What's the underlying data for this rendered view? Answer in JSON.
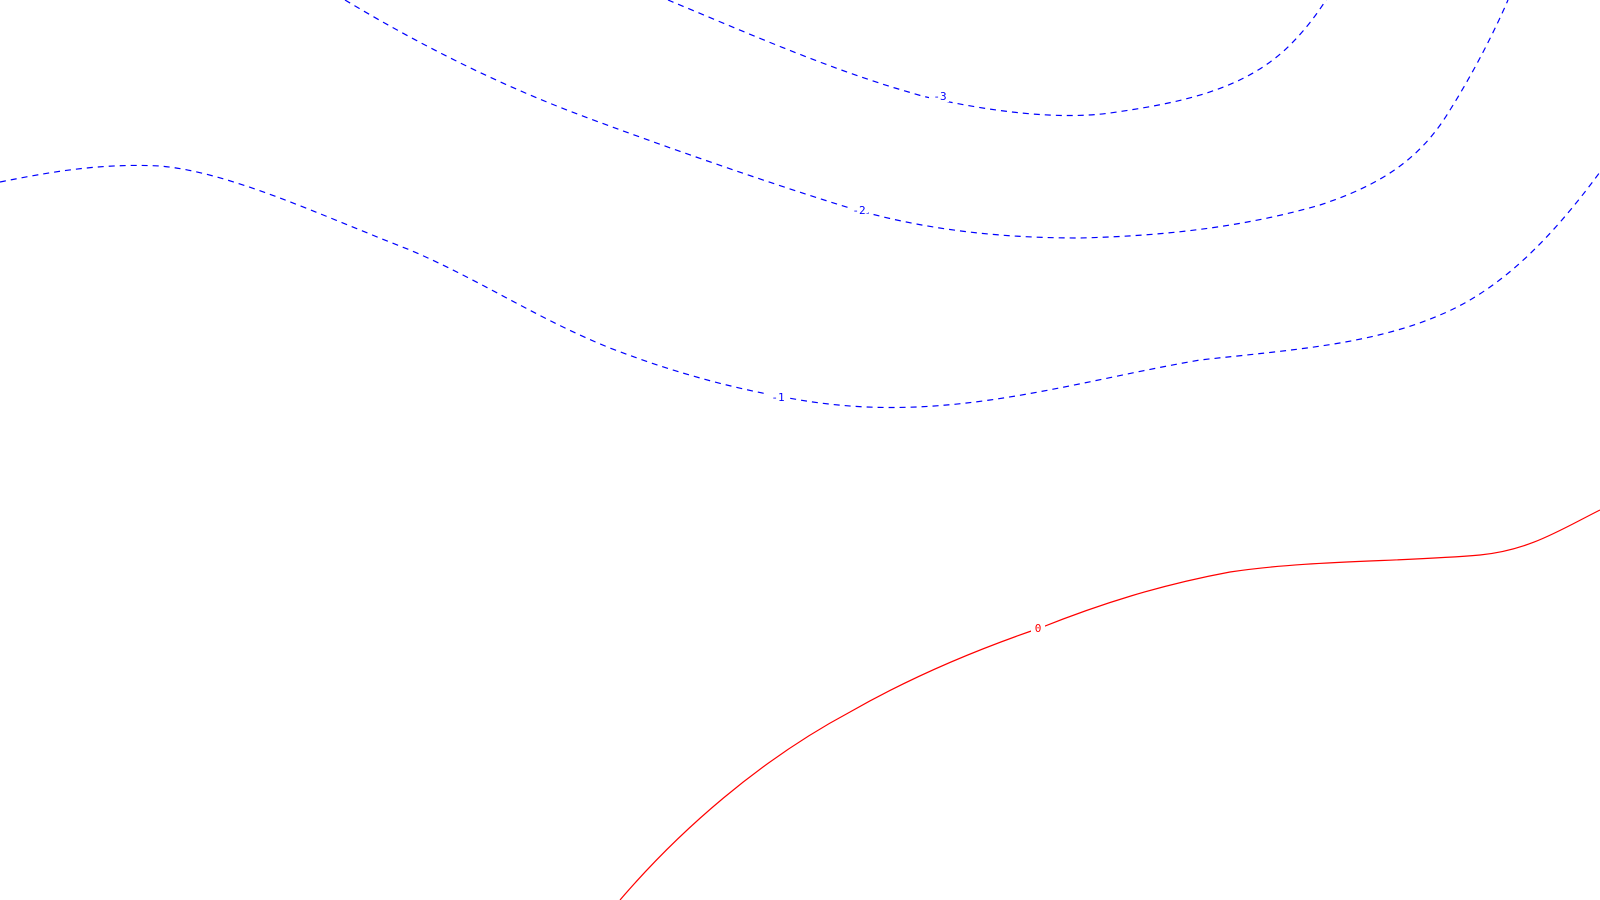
{
  "contours": [
    {
      "id": "contour-neg3",
      "level": "-3",
      "label": "-3",
      "color": "#0000ff",
      "style": "dashed"
    },
    {
      "id": "contour-neg2",
      "level": "-2",
      "label": "-2",
      "color": "#0000ff",
      "style": "dashed"
    },
    {
      "id": "contour-neg1",
      "level": "-1",
      "label": "-1",
      "color": "#0000ff",
      "style": "dashed"
    },
    {
      "id": "contour-0",
      "level": "0",
      "label": "0",
      "color": "#ff0000",
      "style": "solid"
    }
  ]
}
